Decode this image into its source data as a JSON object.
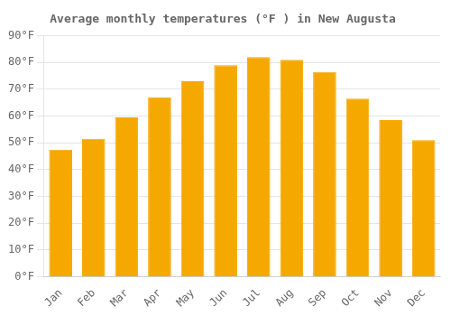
{
  "chart_data": {
    "type": "bar",
    "title": "Average monthly temperatures (°F ) in New Augusta",
    "categories": [
      "Jan",
      "Feb",
      "Mar",
      "Apr",
      "May",
      "Jun",
      "Jul",
      "Aug",
      "Sep",
      "Oct",
      "Nov",
      "Dec"
    ],
    "values": [
      47.5,
      51.5,
      59.5,
      67,
      73,
      79,
      82,
      81,
      76.5,
      66.5,
      58.5,
      51
    ],
    "color": "#F5A800",
    "ylim": [
      0,
      90
    ],
    "yticks": [
      {
        "value": 0,
        "label": "0°F"
      },
      {
        "value": 10,
        "label": "10°F"
      },
      {
        "value": 20,
        "label": "20°F"
      },
      {
        "value": 30,
        "label": "30°F"
      },
      {
        "value": 40,
        "label": "40°F"
      },
      {
        "value": 50,
        "label": "50°F"
      },
      {
        "value": 60,
        "label": "60°F"
      },
      {
        "value": 70,
        "label": "70°F"
      },
      {
        "value": 80,
        "label": "80°F"
      },
      {
        "value": 90,
        "label": "90°F"
      }
    ],
    "grid": true
  }
}
